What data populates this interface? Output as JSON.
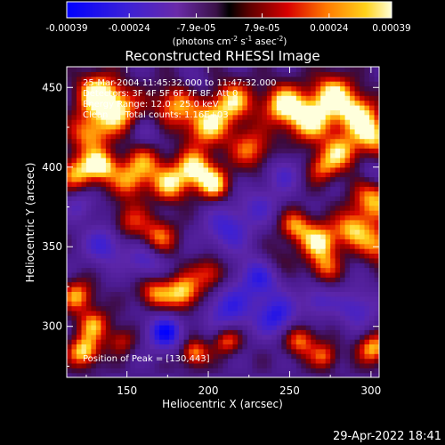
{
  "chart_data": {
    "type": "heatmap",
    "title": "Reconstructed RHESSI Image",
    "xlabel": "Heliocentric X (arcsec)",
    "ylabel": "Heliocentric Y (arcsec)",
    "xlim": [
      113,
      305
    ],
    "ylim": [
      268,
      463
    ],
    "x_ticks": [
      150,
      200,
      250,
      300
    ],
    "y_ticks": [
      300,
      350,
      400,
      450
    ],
    "colorbar": {
      "range": [
        -0.00039,
        0.00039
      ],
      "tick_values": [
        -0.00039,
        -0.00024,
        -7.9e-05,
        7.9e-05,
        0.00024,
        0.00039
      ],
      "tick_labels": [
        "-0.00039",
        "-0.00024",
        "-7.9e-05",
        "7.9e-05",
        "0.00024",
        "0.00039"
      ],
      "units_text": "(photons cm",
      "units_exp1": "-2",
      "units_mid": " s",
      "units_exp2": "-1",
      "units_end": " asec",
      "units_exp3": "-2",
      "units_close": ")"
    },
    "annotations": {
      "time_range": "25-Mar-2004 11:45:32.000 to 11:47:32.000",
      "detectors": "Detectors: 3F 4F 5F 6F 7F 8F, Att 0",
      "energy_range": "Energy Range: 12.0 - 25.0 keV",
      "method_counts": "Clean      Total counts: 1.16E+03",
      "peak_position": "Position of Peak = [130,443]"
    },
    "grid": false,
    "blobs": [
      {
        "x": 130,
        "y": 445,
        "v": 1.0,
        "s": 9
      },
      {
        "x": 143,
        "y": 434,
        "v": 0.9,
        "s": 10
      },
      {
        "x": 125,
        "y": 420,
        "v": 0.75,
        "s": 9
      },
      {
        "x": 118,
        "y": 395,
        "v": 0.8,
        "s": 8
      },
      {
        "x": 133,
        "y": 400,
        "v": 0.95,
        "s": 7
      },
      {
        "x": 150,
        "y": 390,
        "v": 0.7,
        "s": 8
      },
      {
        "x": 160,
        "y": 402,
        "v": 0.65,
        "s": 8
      },
      {
        "x": 175,
        "y": 388,
        "v": 0.85,
        "s": 8
      },
      {
        "x": 190,
        "y": 398,
        "v": 0.95,
        "s": 8
      },
      {
        "x": 202,
        "y": 388,
        "v": 0.9,
        "s": 7
      },
      {
        "x": 178,
        "y": 438,
        "v": 0.75,
        "s": 9
      },
      {
        "x": 198,
        "y": 425,
        "v": 0.9,
        "s": 10
      },
      {
        "x": 214,
        "y": 440,
        "v": 0.85,
        "s": 9
      },
      {
        "x": 225,
        "y": 410,
        "v": 0.7,
        "s": 9
      },
      {
        "x": 245,
        "y": 438,
        "v": 1.0,
        "s": 9
      },
      {
        "x": 262,
        "y": 428,
        "v": 0.95,
        "s": 10
      },
      {
        "x": 275,
        "y": 445,
        "v": 0.9,
        "s": 9
      },
      {
        "x": 290,
        "y": 432,
        "v": 0.95,
        "s": 9
      },
      {
        "x": 300,
        "y": 418,
        "v": 0.85,
        "s": 8
      },
      {
        "x": 280,
        "y": 408,
        "v": 0.8,
        "s": 8
      },
      {
        "x": 268,
        "y": 398,
        "v": 0.6,
        "s": 7
      },
      {
        "x": 300,
        "y": 378,
        "v": 0.85,
        "s": 9
      },
      {
        "x": 287,
        "y": 360,
        "v": 0.8,
        "s": 8
      },
      {
        "x": 303,
        "y": 350,
        "v": 0.75,
        "s": 8
      },
      {
        "x": 267,
        "y": 352,
        "v": 0.95,
        "s": 8
      },
      {
        "x": 252,
        "y": 362,
        "v": 0.75,
        "s": 7
      },
      {
        "x": 270,
        "y": 336,
        "v": 0.6,
        "s": 7
      },
      {
        "x": 150,
        "y": 365,
        "v": 0.55,
        "s": 8
      },
      {
        "x": 168,
        "y": 355,
        "v": 0.7,
        "s": 8
      },
      {
        "x": 183,
        "y": 320,
        "v": 0.95,
        "s": 8
      },
      {
        "x": 165,
        "y": 320,
        "v": 0.7,
        "s": 7
      },
      {
        "x": 200,
        "y": 332,
        "v": 0.65,
        "s": 7
      },
      {
        "x": 118,
        "y": 318,
        "v": 0.8,
        "s": 7
      },
      {
        "x": 128,
        "y": 300,
        "v": 0.75,
        "s": 7
      },
      {
        "x": 122,
        "y": 283,
        "v": 0.95,
        "s": 7
      },
      {
        "x": 145,
        "y": 290,
        "v": 0.5,
        "s": 6
      },
      {
        "x": 190,
        "y": 282,
        "v": 0.8,
        "s": 6
      },
      {
        "x": 210,
        "y": 290,
        "v": 0.7,
        "s": 6
      },
      {
        "x": 255,
        "y": 290,
        "v": 0.75,
        "s": 7
      },
      {
        "x": 270,
        "y": 280,
        "v": 0.65,
        "s": 6
      },
      {
        "x": 300,
        "y": 285,
        "v": 0.85,
        "s": 7
      },
      {
        "x": 240,
        "y": 340,
        "v": 0.35,
        "s": 8
      },
      {
        "x": 230,
        "y": 375,
        "v": -0.4,
        "s": 9
      },
      {
        "x": 210,
        "y": 360,
        "v": -0.6,
        "s": 10
      },
      {
        "x": 230,
        "y": 330,
        "v": -0.7,
        "s": 10
      },
      {
        "x": 210,
        "y": 310,
        "v": -0.65,
        "s": 10
      },
      {
        "x": 240,
        "y": 305,
        "v": -0.75,
        "s": 9
      },
      {
        "x": 172,
        "y": 295,
        "v": -0.9,
        "s": 8
      },
      {
        "x": 160,
        "y": 340,
        "v": -0.55,
        "s": 8
      },
      {
        "x": 135,
        "y": 350,
        "v": -0.6,
        "s": 9
      },
      {
        "x": 290,
        "y": 310,
        "v": -0.55,
        "s": 9
      },
      {
        "x": 265,
        "y": 315,
        "v": -0.5,
        "s": 7
      },
      {
        "x": 300,
        "y": 395,
        "v": -0.3,
        "s": 6
      },
      {
        "x": 245,
        "y": 395,
        "v": -0.45,
        "s": 8
      },
      {
        "x": 160,
        "y": 420,
        "v": -0.3,
        "s": 7
      },
      {
        "x": 190,
        "y": 450,
        "v": -0.2,
        "s": 6
      },
      {
        "x": 120,
        "y": 375,
        "v": -0.4,
        "s": 7
      }
    ],
    "footer_date": "29-Apr-2022 18:41"
  }
}
